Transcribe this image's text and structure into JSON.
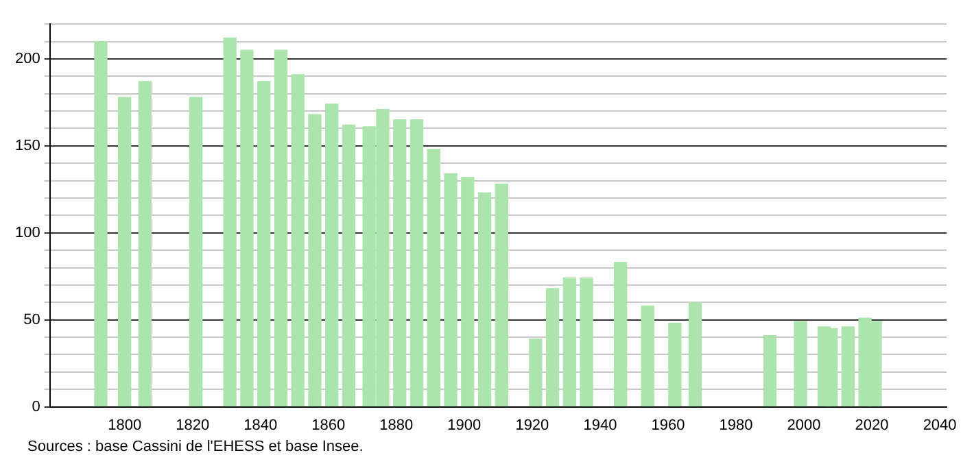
{
  "chart_data": {
    "type": "bar",
    "x": [
      1793,
      1800,
      1806,
      1821,
      1831,
      1836,
      1841,
      1846,
      1851,
      1856,
      1861,
      1866,
      1872,
      1876,
      1881,
      1886,
      1891,
      1896,
      1901,
      1906,
      1911,
      1921,
      1926,
      1931,
      1936,
      1946,
      1954,
      1962,
      1968,
      1990,
      1999,
      2006,
      2008,
      2013,
      2018,
      2021
    ],
    "values": [
      210,
      178,
      187,
      178,
      212,
      205,
      187,
      205,
      191,
      168,
      174,
      162,
      161,
      171,
      165,
      165,
      148,
      134,
      132,
      123,
      128,
      39,
      68,
      74,
      74,
      83,
      58,
      48,
      60,
      41,
      49,
      46,
      45,
      46,
      51,
      49
    ],
    "color": "#ade3ad",
    "xlim": [
      1778,
      2042
    ],
    "xticks": [
      1800,
      1820,
      1840,
      1860,
      1880,
      1900,
      1920,
      1940,
      1960,
      1980,
      2000,
      2020,
      2040
    ],
    "ylim": [
      0,
      220
    ],
    "yticks": [
      0,
      {
        "value": 10,
        "label": null
      },
      {
        "value": 20,
        "label": null
      },
      {
        "value": 30,
        "label": null
      },
      {
        "value": 40,
        "label": null
      },
      50,
      {
        "value": 60,
        "label": null
      },
      {
        "value": 70,
        "label": null
      },
      {
        "value": 80,
        "label": null
      },
      {
        "value": 90,
        "label": null
      },
      100,
      {
        "value": 110,
        "label": null
      },
      {
        "value": 120,
        "label": null
      },
      {
        "value": 130,
        "label": null
      },
      {
        "value": 140,
        "label": null
      },
      150,
      {
        "value": 160,
        "label": null
      },
      {
        "value": 170,
        "label": null
      },
      {
        "value": 180,
        "label": null
      },
      {
        "value": 190,
        "label": null
      },
      200,
      {
        "value": 210,
        "label": null
      },
      {
        "value": 220,
        "label": null
      }
    ],
    "grid": "y",
    "legend": false,
    "annotations": [
      "Sources : base Cassini de l'EHESS et base Insee."
    ]
  }
}
